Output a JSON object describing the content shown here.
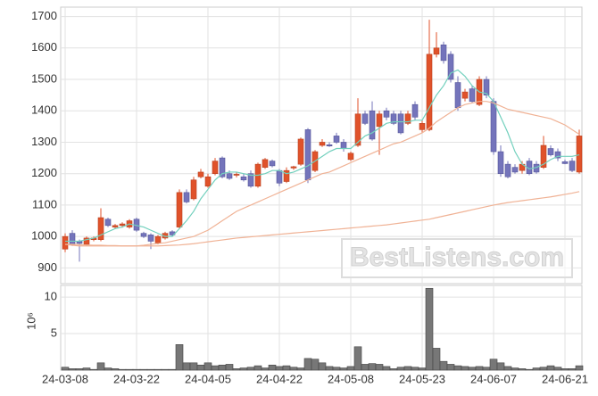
{
  "chart_data": [
    {
      "type": "candlestick",
      "up_color": "#e0522a",
      "down_color": "#7474bb",
      "open": [
        960,
        1010,
        985,
        975,
        990,
        990,
        1055,
        1030,
        1035,
        1030,
        1055,
        1010,
        1005,
        980,
        995,
        1015,
        1030,
        1140,
        1120,
        1190,
        1160,
        1200,
        1250,
        1200,
        1195,
        1190,
        1200,
        1160,
        1220,
        1240,
        1210,
        1175,
        1218,
        1230,
        1340,
        1210,
        1290,
        1292,
        1320,
        1300,
        1245,
        1290,
        1390,
        1400,
        1350,
        1400,
        1390,
        1390,
        1360,
        1420,
        1340,
        1340,
        1580,
        1610,
        1580,
        1490,
        1440,
        1470,
        1420,
        1500,
        1430,
        1270,
        1230,
        1220,
        1210,
        1240,
        1230,
        1220,
        1280,
        1270,
        1238,
        1240,
        1205
      ],
      "high": [
        1010,
        1020,
        990,
        1000,
        1000,
        1090,
        1060,
        1040,
        1045,
        1055,
        1060,
        1015,
        1010,
        1005,
        1015,
        1020,
        1150,
        1150,
        1190,
        1215,
        1200,
        1250,
        1255,
        1210,
        1205,
        1200,
        1210,
        1235,
        1250,
        1245,
        1215,
        1220,
        1225,
        1315,
        1345,
        1275,
        1310,
        1300,
        1330,
        1310,
        1270,
        1440,
        1400,
        1430,
        1400,
        1410,
        1400,
        1400,
        1400,
        1430,
        1370,
        1690,
        1650,
        1620,
        1590,
        1510,
        1470,
        1480,
        1510,
        1510,
        1440,
        1290,
        1240,
        1230,
        1240,
        1250,
        1240,
        1320,
        1290,
        1280,
        1245,
        1250,
        1340
      ],
      "low": [
        950,
        970,
        920,
        970,
        985,
        985,
        1030,
        1025,
        1028,
        1025,
        1015,
        995,
        960,
        975,
        990,
        1000,
        1025,
        1105,
        1115,
        1185,
        1155,
        1195,
        1185,
        1180,
        1188,
        1175,
        1155,
        1155,
        1215,
        1220,
        1160,
        1170,
        1212,
        1225,
        1170,
        1205,
        1285,
        1285,
        1295,
        1270,
        1240,
        1285,
        1355,
        1305,
        1260,
        1370,
        1355,
        1325,
        1355,
        1370,
        1330,
        1335,
        1570,
        1550,
        1490,
        1400,
        1430,
        1425,
        1415,
        1440,
        1260,
        1190,
        1185,
        1200,
        1200,
        1195,
        1200,
        1215,
        1255,
        1240,
        1230,
        1205,
        1200
      ],
      "close": [
        1000,
        975,
        978,
        995,
        995,
        1060,
        1035,
        1035,
        1040,
        1050,
        1020,
        1000,
        985,
        1000,
        1010,
        1005,
        1140,
        1110,
        1180,
        1205,
        1190,
        1240,
        1190,
        1185,
        1198,
        1180,
        1160,
        1230,
        1245,
        1225,
        1170,
        1210,
        1222,
        1310,
        1180,
        1270,
        1300,
        1288,
        1300,
        1280,
        1265,
        1390,
        1360,
        1310,
        1390,
        1380,
        1360,
        1330,
        1390,
        1380,
        1360,
        1580,
        1600,
        1560,
        1500,
        1410,
        1460,
        1430,
        1500,
        1450,
        1270,
        1200,
        1190,
        1205,
        1230,
        1200,
        1205,
        1290,
        1260,
        1250,
        1232,
        1210,
        1320
      ],
      "lines": [
        {
          "color": "#72d0bd",
          "values": [
            985,
            985,
            985,
            990,
            995,
            1005,
            1015,
            1025,
            1030,
            1040,
            1035,
            1030,
            1020,
            1010,
            1000,
            1000,
            1025,
            1050,
            1080,
            1120,
            1150,
            1180,
            1200,
            1205,
            1205,
            1200,
            1195,
            1195,
            1200,
            1210,
            1210,
            1200,
            1205,
            1215,
            1225,
            1240,
            1255,
            1270,
            1280,
            1280,
            1280,
            1300,
            1320,
            1330,
            1345,
            1360,
            1365,
            1365,
            1365,
            1370,
            1370,
            1410,
            1450,
            1480,
            1520,
            1530,
            1510,
            1480,
            1460,
            1455,
            1430,
            1380,
            1330,
            1270,
            1230,
            1215,
            1220,
            1230,
            1245,
            1255,
            1255,
            1255,
            1260
          ]
        },
        {
          "color": "#f0b295",
          "values": [
            975,
            972,
            970,
            970,
            970,
            970,
            970,
            970,
            970,
            970,
            970,
            972,
            975,
            978,
            980,
            985,
            990,
            995,
            1000,
            1010,
            1020,
            1035,
            1050,
            1065,
            1080,
            1090,
            1100,
            1110,
            1120,
            1130,
            1140,
            1150,
            1160,
            1170,
            1180,
            1190,
            1200,
            1205,
            1215,
            1225,
            1235,
            1245,
            1255,
            1265,
            1275,
            1285,
            1295,
            1300,
            1310,
            1320,
            1330,
            1345,
            1365,
            1380,
            1395,
            1410,
            1420,
            1425,
            1430,
            1430,
            1425,
            1415,
            1405,
            1400,
            1395,
            1390,
            1385,
            1380,
            1375,
            1365,
            1355,
            1340,
            1325
          ]
        },
        {
          "color": "#f0b295",
          "values": [
            975,
            975,
            974,
            973,
            972,
            972,
            971,
            971,
            970,
            970,
            970,
            970,
            970,
            970,
            971,
            972,
            973,
            975,
            977,
            980,
            983,
            986,
            989,
            992,
            995,
            997,
            999,
            1001,
            1003,
            1005,
            1007,
            1009,
            1011,
            1013,
            1015,
            1017,
            1019,
            1021,
            1023,
            1025,
            1027,
            1029,
            1031,
            1033,
            1035,
            1037,
            1040,
            1043,
            1046,
            1049,
            1052,
            1055,
            1060,
            1065,
            1070,
            1075,
            1080,
            1085,
            1090,
            1095,
            1100,
            1104,
            1108,
            1111,
            1114,
            1117,
            1120,
            1123,
            1126,
            1130,
            1134,
            1138,
            1143
          ]
        }
      ],
      "ylim": [
        850,
        1730
      ],
      "yticks": [
        900,
        1000,
        1100,
        1200,
        1300,
        1400,
        1500,
        1600,
        1700
      ],
      "grid": true,
      "watermark": "BestListens.com"
    },
    {
      "type": "bar",
      "color": "#777777",
      "y_label": "10⁶",
      "categories": [
        "24-03-08",
        null,
        null,
        null,
        null,
        null,
        null,
        null,
        null,
        null,
        "24-03-22",
        null,
        null,
        null,
        null,
        null,
        null,
        null,
        null,
        null,
        "24-04-05",
        null,
        null,
        null,
        null,
        null,
        null,
        null,
        null,
        null,
        "24-04-22",
        null,
        null,
        null,
        null,
        null,
        null,
        null,
        null,
        null,
        "24-05-08",
        null,
        null,
        null,
        null,
        null,
        null,
        null,
        null,
        null,
        "24-05-23",
        null,
        null,
        null,
        null,
        null,
        null,
        null,
        null,
        null,
        "24-06-07",
        null,
        null,
        null,
        null,
        null,
        null,
        null,
        null,
        null,
        "24-06-21",
        null,
        null
      ],
      "values": [
        0.4,
        0.2,
        0.2,
        0.3,
        0.1,
        1.0,
        0.3,
        0.2,
        0.1,
        0.1,
        0.1,
        0.1,
        0.1,
        0.1,
        0.1,
        0.1,
        3.5,
        1.0,
        1.0,
        0.7,
        1.0,
        0.6,
        0.7,
        0.8,
        0.2,
        0.3,
        0.4,
        0.6,
        0.3,
        0.7,
        0.5,
        0.6,
        0.4,
        0.3,
        1.6,
        1.5,
        1.0,
        0.5,
        0.4,
        0.3,
        0.5,
        3.2,
        0.8,
        0.9,
        0.8,
        0.5,
        0.2,
        0.4,
        0.5,
        0.4,
        0.3,
        11.2,
        3.0,
        1.2,
        0.8,
        0.6,
        0.5,
        0.4,
        0.5,
        0.4,
        1.5,
        1.0,
        0.5,
        0.3,
        0.2,
        0.1,
        0.3,
        0.4,
        0.6,
        0.4,
        0.2,
        0.2,
        0.6
      ],
      "ylim": [
        0,
        11.6
      ],
      "yticks": [
        5,
        10
      ],
      "grid": true
    }
  ]
}
